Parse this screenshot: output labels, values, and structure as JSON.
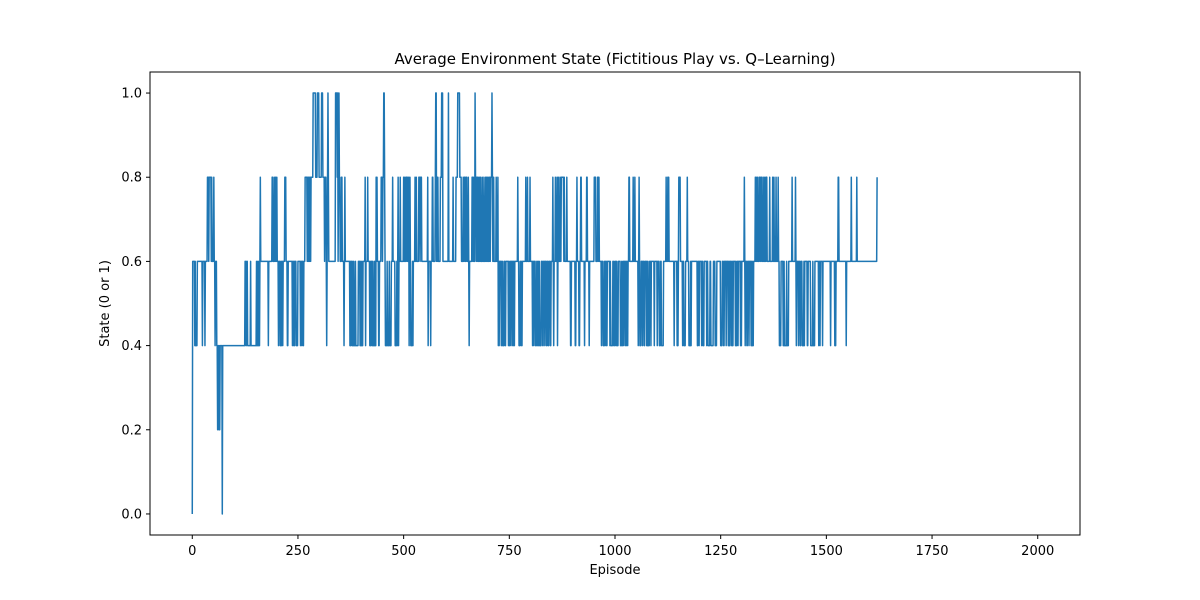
{
  "chart_data": {
    "type": "line",
    "title": "Average Environment State (Fictitious Play vs. Q–Learning)",
    "xlabel": "Episode",
    "ylabel": "State (0 or 1)",
    "xlim": [
      -100,
      2100
    ],
    "ylim": [
      -0.05,
      1.05
    ],
    "xticks": [
      0,
      250,
      500,
      750,
      1000,
      1250,
      1500,
      1750,
      2000
    ],
    "xtick_labels": [
      "0",
      "250",
      "500",
      "750",
      "1000",
      "1250",
      "1500",
      "1750",
      "2000"
    ],
    "yticks": [
      0.0,
      0.2,
      0.4,
      0.6,
      0.8,
      1.0
    ],
    "ytick_labels": [
      "0.0",
      "0.2",
      "0.4",
      "0.6",
      "0.8",
      "1.0"
    ],
    "grid": false,
    "legend": "none",
    "series": [
      {
        "color": "#1f77b4",
        "x_start": 0,
        "x_step": 1,
        "levels": [
          0.0,
          0.2,
          0.4,
          0.6,
          0.8,
          1.0
        ],
        "level_codes": "0333332322223333333333332333332333334443444443433334332333221221212222202222222222222222222222222222222222222222222222222222233223322222223222222222222232232322343333333333333333332333333334433343343343332333223233233334443332233333333332332323332222333333233233223334444434343434344444555555444455554444445554444344432345433333333333333335555453454433344333323433333333333232332232322232222223333232232233333423333433332232332322232324343332233334443445543222232222322223334333332222323423334333333343343344343342343222232333343343333344434443333333333333342333332333443333345534343333344454533333333333335333333333343333334444555554444333343344334433343233333344343335443443433433433343334333434334334343444543343333343334232333323232223322333333232233233323232333333343322233232333333334333433333433333233233322233223232222333223332333223322333223333432333433342343334334444443433333433333333223333333332233433332233443333333233334433332333333333334444333344343333323332223233232333333232222233232233232223333322232233233323233233443333333343334333333323432223332333223333232322233323333333233333323333222332222233333343334343333333333332333333232344443333323322223333433322223233333333333333223323333323322233333323322222332222223333222233333333322223332233332333323232333223233333232233233333232333333432333223332333323232233334343343334433443433343343344333333433333343343333433334332222333332232222232222333333334333333343233332333223332222323333332233333322222322223333333332332333332333333333333333333233333333323233333443333333333333333323333333333343333333333334333333333333333333333333333333333333333333333334"
      }
    ]
  }
}
